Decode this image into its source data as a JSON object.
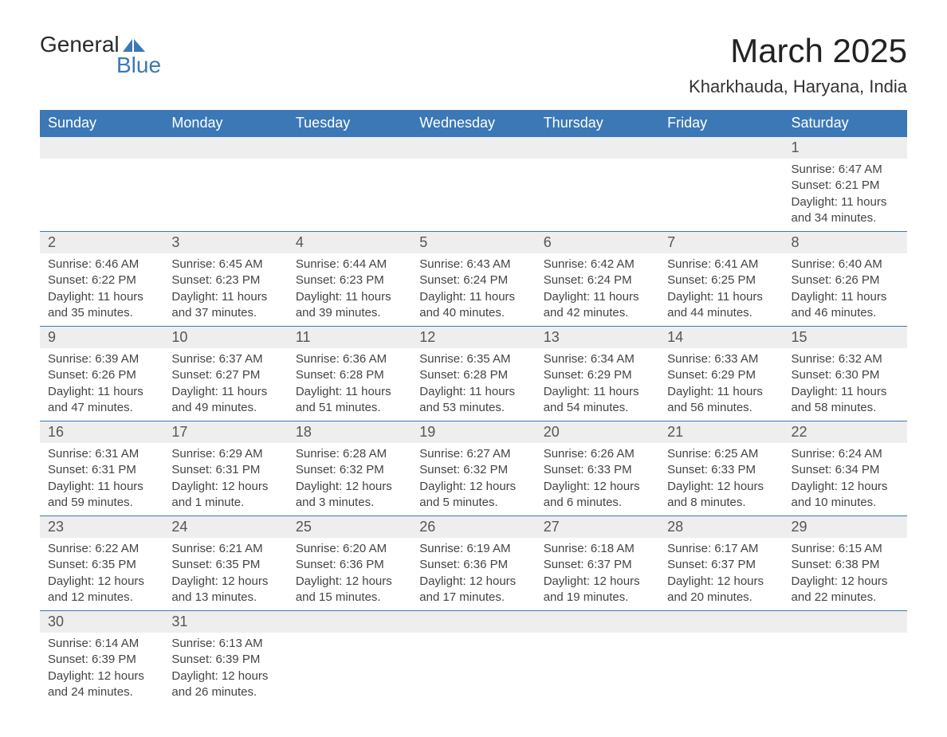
{
  "logo": {
    "text_general": "General",
    "text_blue": "Blue",
    "brand_color": "#3b78b5"
  },
  "title": "March 2025",
  "subtitle": "Kharkhauda, Haryana, India",
  "colors": {
    "header_bg": "#3b78b5",
    "header_text": "#ffffff",
    "daynum_bg": "#eeeeee",
    "text": "#444444",
    "border": "#3b78b5"
  },
  "fonts": {
    "title_pt": 42,
    "subtitle_pt": 22,
    "header_pt": 18,
    "body_pt": 15
  },
  "weekdays": [
    "Sunday",
    "Monday",
    "Tuesday",
    "Wednesday",
    "Thursday",
    "Friday",
    "Saturday"
  ],
  "weeks": [
    [
      null,
      null,
      null,
      null,
      null,
      null,
      {
        "n": 1,
        "sunrise": "6:47 AM",
        "sunset": "6:21 PM",
        "daylight": "11 hours and 34 minutes."
      }
    ],
    [
      {
        "n": 2,
        "sunrise": "6:46 AM",
        "sunset": "6:22 PM",
        "daylight": "11 hours and 35 minutes."
      },
      {
        "n": 3,
        "sunrise": "6:45 AM",
        "sunset": "6:23 PM",
        "daylight": "11 hours and 37 minutes."
      },
      {
        "n": 4,
        "sunrise": "6:44 AM",
        "sunset": "6:23 PM",
        "daylight": "11 hours and 39 minutes."
      },
      {
        "n": 5,
        "sunrise": "6:43 AM",
        "sunset": "6:24 PM",
        "daylight": "11 hours and 40 minutes."
      },
      {
        "n": 6,
        "sunrise": "6:42 AM",
        "sunset": "6:24 PM",
        "daylight": "11 hours and 42 minutes."
      },
      {
        "n": 7,
        "sunrise": "6:41 AM",
        "sunset": "6:25 PM",
        "daylight": "11 hours and 44 minutes."
      },
      {
        "n": 8,
        "sunrise": "6:40 AM",
        "sunset": "6:26 PM",
        "daylight": "11 hours and 46 minutes."
      }
    ],
    [
      {
        "n": 9,
        "sunrise": "6:39 AM",
        "sunset": "6:26 PM",
        "daylight": "11 hours and 47 minutes."
      },
      {
        "n": 10,
        "sunrise": "6:37 AM",
        "sunset": "6:27 PM",
        "daylight": "11 hours and 49 minutes."
      },
      {
        "n": 11,
        "sunrise": "6:36 AM",
        "sunset": "6:28 PM",
        "daylight": "11 hours and 51 minutes."
      },
      {
        "n": 12,
        "sunrise": "6:35 AM",
        "sunset": "6:28 PM",
        "daylight": "11 hours and 53 minutes."
      },
      {
        "n": 13,
        "sunrise": "6:34 AM",
        "sunset": "6:29 PM",
        "daylight": "11 hours and 54 minutes."
      },
      {
        "n": 14,
        "sunrise": "6:33 AM",
        "sunset": "6:29 PM",
        "daylight": "11 hours and 56 minutes."
      },
      {
        "n": 15,
        "sunrise": "6:32 AM",
        "sunset": "6:30 PM",
        "daylight": "11 hours and 58 minutes."
      }
    ],
    [
      {
        "n": 16,
        "sunrise": "6:31 AM",
        "sunset": "6:31 PM",
        "daylight": "11 hours and 59 minutes."
      },
      {
        "n": 17,
        "sunrise": "6:29 AM",
        "sunset": "6:31 PM",
        "daylight": "12 hours and 1 minute."
      },
      {
        "n": 18,
        "sunrise": "6:28 AM",
        "sunset": "6:32 PM",
        "daylight": "12 hours and 3 minutes."
      },
      {
        "n": 19,
        "sunrise": "6:27 AM",
        "sunset": "6:32 PM",
        "daylight": "12 hours and 5 minutes."
      },
      {
        "n": 20,
        "sunrise": "6:26 AM",
        "sunset": "6:33 PM",
        "daylight": "12 hours and 6 minutes."
      },
      {
        "n": 21,
        "sunrise": "6:25 AM",
        "sunset": "6:33 PM",
        "daylight": "12 hours and 8 minutes."
      },
      {
        "n": 22,
        "sunrise": "6:24 AM",
        "sunset": "6:34 PM",
        "daylight": "12 hours and 10 minutes."
      }
    ],
    [
      {
        "n": 23,
        "sunrise": "6:22 AM",
        "sunset": "6:35 PM",
        "daylight": "12 hours and 12 minutes."
      },
      {
        "n": 24,
        "sunrise": "6:21 AM",
        "sunset": "6:35 PM",
        "daylight": "12 hours and 13 minutes."
      },
      {
        "n": 25,
        "sunrise": "6:20 AM",
        "sunset": "6:36 PM",
        "daylight": "12 hours and 15 minutes."
      },
      {
        "n": 26,
        "sunrise": "6:19 AM",
        "sunset": "6:36 PM",
        "daylight": "12 hours and 17 minutes."
      },
      {
        "n": 27,
        "sunrise": "6:18 AM",
        "sunset": "6:37 PM",
        "daylight": "12 hours and 19 minutes."
      },
      {
        "n": 28,
        "sunrise": "6:17 AM",
        "sunset": "6:37 PM",
        "daylight": "12 hours and 20 minutes."
      },
      {
        "n": 29,
        "sunrise": "6:15 AM",
        "sunset": "6:38 PM",
        "daylight": "12 hours and 22 minutes."
      }
    ],
    [
      {
        "n": 30,
        "sunrise": "6:14 AM",
        "sunset": "6:39 PM",
        "daylight": "12 hours and 24 minutes."
      },
      {
        "n": 31,
        "sunrise": "6:13 AM",
        "sunset": "6:39 PM",
        "daylight": "12 hours and 26 minutes."
      },
      null,
      null,
      null,
      null,
      null
    ]
  ],
  "labels": {
    "sunrise": "Sunrise: ",
    "sunset": "Sunset: ",
    "daylight": "Daylight: "
  }
}
